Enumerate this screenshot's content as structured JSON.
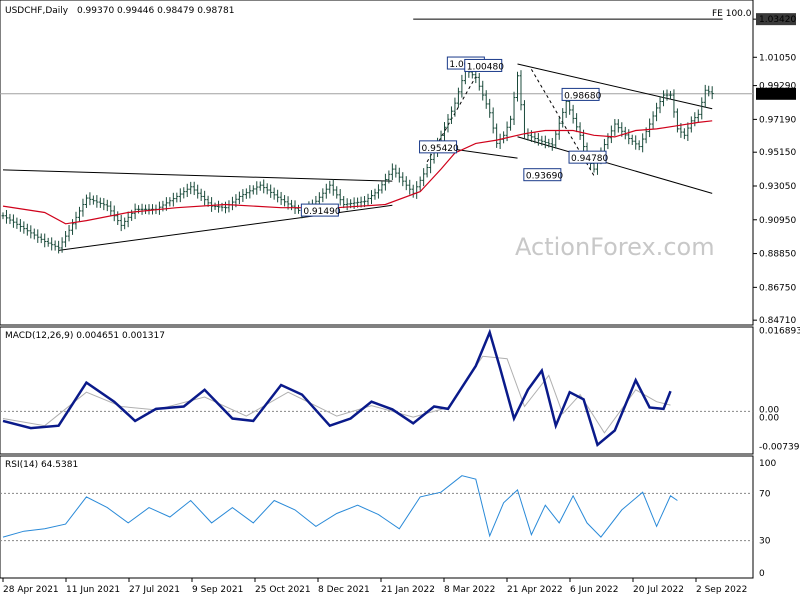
{
  "header": {
    "symbol": "USDCHF,Daily",
    "ohlc": "0.99370 0.99446 0.98479 0.98781"
  },
  "watermark": "ActionForex.com",
  "chart_data": [
    {
      "type": "candlestick",
      "title": "USDCHF,Daily",
      "ylim": [
        0.8441,
        1.0461
      ],
      "y_ticks": [
        "1.03420",
        "1.01050",
        "0.99290",
        "0.97190",
        "0.95150",
        "0.93050",
        "0.90950",
        "0.88850",
        "0.86750",
        "0.84710"
      ],
      "y_tick_values": [
        1.0342,
        1.0105,
        0.9929,
        0.9719,
        0.9515,
        0.9305,
        0.9095,
        0.8885,
        0.8675,
        0.8471
      ],
      "current_price_label": "0.98781",
      "current_price": 0.98781,
      "fe_label": "FE 100.0",
      "fe_level": 1.0342,
      "price_labels": [
        {
          "text": "1.00630",
          "value": 1.0063,
          "x_index": 133
        },
        {
          "text": "1.00480",
          "value": 1.0048,
          "x_index": 138
        },
        {
          "text": "0.98680",
          "value": 0.9868,
          "x_index": 166
        },
        {
          "text": "0.95420",
          "value": 0.9542,
          "x_index": 125
        },
        {
          "text": "0.94780",
          "value": 0.9478,
          "x_index": 168
        },
        {
          "text": "0.93690",
          "value": 0.9369,
          "x_index": 155
        },
        {
          "text": "0.91490",
          "value": 0.9149,
          "x_index": 91
        }
      ],
      "close_series": [
        {
          "x": 0,
          "y": 0.912
        },
        {
          "x": 6,
          "y": 0.904
        },
        {
          "x": 12,
          "y": 0.896
        },
        {
          "x": 16,
          "y": 0.892
        },
        {
          "x": 19,
          "y": 0.903
        },
        {
          "x": 24,
          "y": 0.923
        },
        {
          "x": 30,
          "y": 0.918
        },
        {
          "x": 34,
          "y": 0.906
        },
        {
          "x": 38,
          "y": 0.916
        },
        {
          "x": 44,
          "y": 0.916
        },
        {
          "x": 50,
          "y": 0.924
        },
        {
          "x": 54,
          "y": 0.93
        },
        {
          "x": 60,
          "y": 0.918
        },
        {
          "x": 64,
          "y": 0.917
        },
        {
          "x": 68,
          "y": 0.924
        },
        {
          "x": 74,
          "y": 0.931
        },
        {
          "x": 80,
          "y": 0.922
        },
        {
          "x": 86,
          "y": 0.914
        },
        {
          "x": 90,
          "y": 0.921
        },
        {
          "x": 94,
          "y": 0.931
        },
        {
          "x": 98,
          "y": 0.919
        },
        {
          "x": 104,
          "y": 0.921
        },
        {
          "x": 108,
          "y": 0.928
        },
        {
          "x": 112,
          "y": 0.941
        },
        {
          "x": 118,
          "y": 0.926
        },
        {
          "x": 122,
          "y": 0.942
        },
        {
          "x": 126,
          "y": 0.962
        },
        {
          "x": 130,
          "y": 0.982
        },
        {
          "x": 133,
          "y": 1.003
        },
        {
          "x": 136,
          "y": 0.998
        },
        {
          "x": 140,
          "y": 0.976
        },
        {
          "x": 142,
          "y": 0.957
        },
        {
          "x": 144,
          "y": 0.962
        },
        {
          "x": 146,
          "y": 0.972
        },
        {
          "x": 148,
          "y": 0.999
        },
        {
          "x": 150,
          "y": 0.963
        },
        {
          "x": 154,
          "y": 0.959
        },
        {
          "x": 158,
          "y": 0.956
        },
        {
          "x": 162,
          "y": 0.983
        },
        {
          "x": 166,
          "y": 0.962
        },
        {
          "x": 168,
          "y": 0.948
        },
        {
          "x": 170,
          "y": 0.941
        },
        {
          "x": 172,
          "y": 0.952
        },
        {
          "x": 176,
          "y": 0.969
        },
        {
          "x": 180,
          "y": 0.96
        },
        {
          "x": 183,
          "y": 0.955
        },
        {
          "x": 186,
          "y": 0.969
        },
        {
          "x": 188,
          "y": 0.979
        },
        {
          "x": 190,
          "y": 0.987
        },
        {
          "x": 192,
          "y": 0.987
        },
        {
          "x": 194,
          "y": 0.966
        },
        {
          "x": 196,
          "y": 0.962
        },
        {
          "x": 198,
          "y": 0.971
        },
        {
          "x": 200,
          "y": 0.975
        },
        {
          "x": 202,
          "y": 0.99
        },
        {
          "x": 204,
          "y": 0.988
        }
      ],
      "moving_average": [
        {
          "x": 0,
          "y": 0.918
        },
        {
          "x": 12,
          "y": 0.914
        },
        {
          "x": 18,
          "y": 0.907
        },
        {
          "x": 24,
          "y": 0.909
        },
        {
          "x": 36,
          "y": 0.914
        },
        {
          "x": 50,
          "y": 0.917
        },
        {
          "x": 64,
          "y": 0.919
        },
        {
          "x": 80,
          "y": 0.917
        },
        {
          "x": 96,
          "y": 0.917
        },
        {
          "x": 110,
          "y": 0.919
        },
        {
          "x": 120,
          "y": 0.927
        },
        {
          "x": 126,
          "y": 0.941
        },
        {
          "x": 130,
          "y": 0.951
        },
        {
          "x": 136,
          "y": 0.957
        },
        {
          "x": 142,
          "y": 0.959
        },
        {
          "x": 150,
          "y": 0.963
        },
        {
          "x": 156,
          "y": 0.965
        },
        {
          "x": 164,
          "y": 0.965
        },
        {
          "x": 170,
          "y": 0.962
        },
        {
          "x": 176,
          "y": 0.961
        },
        {
          "x": 182,
          "y": 0.965
        },
        {
          "x": 188,
          "y": 0.966
        },
        {
          "x": 194,
          "y": 0.968
        },
        {
          "x": 200,
          "y": 0.97
        },
        {
          "x": 204,
          "y": 0.971
        }
      ],
      "trendlines": [
        {
          "x1": 0,
          "y1": 0.9405,
          "x2": 112,
          "y2": 0.9335
        },
        {
          "x1": 16,
          "y1": 0.8905,
          "x2": 112,
          "y2": 0.9185
        },
        {
          "x1": 126,
          "y1": 0.9545,
          "x2": 148,
          "y2": 0.9478
        },
        {
          "x1": 148,
          "y1": 1.0063,
          "x2": 204,
          "y2": 0.9785
        },
        {
          "x1": 148,
          "y1": 0.9611,
          "x2": 204,
          "y2": 0.9259
        },
        {
          "x1": 122,
          "y1": 0.9455,
          "x2": 136,
          "y2": 0.9985
        },
        {
          "x1": 152,
          "y1": 1.003,
          "x2": 170,
          "y2": 0.9369
        },
        {
          "x1": 118,
          "y1": 1.0342,
          "x2": 207,
          "y2": 1.0342
        }
      ],
      "x_tick_labels": [
        "28 Apr 2021",
        "11 Jun 2021",
        "27 Jul 2021",
        "9 Sep 2021",
        "25 Oct 2021",
        "8 Dec 2021",
        "21 Jan 2022",
        "8 Mar 2022",
        "21 Apr 2022",
        "6 Jun 2022",
        "20 Jul 2022",
        "2 Sep 2022"
      ],
      "x_tick_index": [
        0,
        31,
        50,
        68,
        86,
        104,
        123,
        140,
        158,
        176,
        194,
        212
      ]
    },
    {
      "type": "line",
      "title": "MACD(12,26,9) 0.004651 0.001317",
      "ylim": [
        -0.0085,
        0.0172
      ],
      "y_ticks": [
        "0.016893",
        "0.00",
        "0.00",
        "-0.007393"
      ],
      "y_tick_values": [
        0.016893,
        0.0,
        0.0,
        -0.007393
      ],
      "series": [
        {
          "name": "MACD",
          "values": [
            {
              "x": 0,
              "y": -0.002
            },
            {
              "x": 8,
              "y": -0.0035
            },
            {
              "x": 16,
              "y": -0.003
            },
            {
              "x": 24,
              "y": 0.006
            },
            {
              "x": 32,
              "y": 0.002
            },
            {
              "x": 38,
              "y": -0.002
            },
            {
              "x": 44,
              "y": 0.0005
            },
            {
              "x": 52,
              "y": 0.001
            },
            {
              "x": 58,
              "y": 0.0045
            },
            {
              "x": 66,
              "y": -0.0015
            },
            {
              "x": 72,
              "y": -0.002
            },
            {
              "x": 80,
              "y": 0.0055
            },
            {
              "x": 86,
              "y": 0.0035
            },
            {
              "x": 94,
              "y": -0.003
            },
            {
              "x": 100,
              "y": -0.0015
            },
            {
              "x": 106,
              "y": 0.002
            },
            {
              "x": 112,
              "y": 0.0004
            },
            {
              "x": 118,
              "y": -0.0025
            },
            {
              "x": 124,
              "y": 0.001
            },
            {
              "x": 128,
              "y": 0.0005
            },
            {
              "x": 136,
              "y": 0.0095
            },
            {
              "x": 140,
              "y": 0.0165
            },
            {
              "x": 143,
              "y": 0.009
            },
            {
              "x": 147,
              "y": -0.0015
            },
            {
              "x": 151,
              "y": 0.0045
            },
            {
              "x": 155,
              "y": 0.0085
            },
            {
              "x": 159,
              "y": -0.003
            },
            {
              "x": 163,
              "y": 0.004
            },
            {
              "x": 167,
              "y": 0.0025
            },
            {
              "x": 171,
              "y": -0.007
            },
            {
              "x": 176,
              "y": -0.004
            },
            {
              "x": 182,
              "y": 0.0065
            },
            {
              "x": 186,
              "y": 0.0008
            },
            {
              "x": 190,
              "y": 0.0005
            },
            {
              "x": 192,
              "y": 0.0042
            }
          ]
        },
        {
          "name": "Signal",
          "values": [
            {
              "x": 0,
              "y": -0.0015
            },
            {
              "x": 12,
              "y": -0.003
            },
            {
              "x": 24,
              "y": 0.004
            },
            {
              "x": 34,
              "y": 0.001
            },
            {
              "x": 44,
              "y": 0.0003
            },
            {
              "x": 58,
              "y": 0.003
            },
            {
              "x": 70,
              "y": -0.001
            },
            {
              "x": 82,
              "y": 0.004
            },
            {
              "x": 96,
              "y": -0.001
            },
            {
              "x": 106,
              "y": 0.0012
            },
            {
              "x": 118,
              "y": -0.0012
            },
            {
              "x": 128,
              "y": 0.0008
            },
            {
              "x": 138,
              "y": 0.0115
            },
            {
              "x": 145,
              "y": 0.011
            },
            {
              "x": 150,
              "y": 0.001
            },
            {
              "x": 157,
              "y": 0.0075
            },
            {
              "x": 161,
              "y": -0.0005
            },
            {
              "x": 166,
              "y": 0.0035
            },
            {
              "x": 173,
              "y": -0.0045
            },
            {
              "x": 182,
              "y": 0.0045
            },
            {
              "x": 188,
              "y": 0.002
            },
            {
              "x": 192,
              "y": 0.0013
            }
          ]
        }
      ]
    },
    {
      "type": "line",
      "title": "RSI(14) 64.5381",
      "ylim": [
        0,
        100
      ],
      "y_ticks": [
        "100",
        "70",
        "30",
        "0"
      ],
      "y_tick_values": [
        100,
        70,
        30,
        0
      ],
      "levels": [
        70,
        30
      ],
      "series": [
        {
          "name": "RSI(14)",
          "values": [
            {
              "x": 0,
              "y": 33
            },
            {
              "x": 6,
              "y": 38
            },
            {
              "x": 12,
              "y": 40
            },
            {
              "x": 18,
              "y": 44
            },
            {
              "x": 24,
              "y": 67
            },
            {
              "x": 30,
              "y": 58
            },
            {
              "x": 36,
              "y": 45
            },
            {
              "x": 42,
              "y": 58
            },
            {
              "x": 48,
              "y": 50
            },
            {
              "x": 54,
              "y": 64
            },
            {
              "x": 60,
              "y": 45
            },
            {
              "x": 66,
              "y": 58
            },
            {
              "x": 72,
              "y": 45
            },
            {
              "x": 78,
              "y": 64
            },
            {
              "x": 84,
              "y": 56
            },
            {
              "x": 90,
              "y": 42
            },
            {
              "x": 96,
              "y": 53
            },
            {
              "x": 102,
              "y": 60
            },
            {
              "x": 108,
              "y": 52
            },
            {
              "x": 114,
              "y": 40
            },
            {
              "x": 120,
              "y": 67
            },
            {
              "x": 126,
              "y": 71
            },
            {
              "x": 132,
              "y": 85
            },
            {
              "x": 136,
              "y": 82
            },
            {
              "x": 140,
              "y": 34
            },
            {
              "x": 144,
              "y": 62
            },
            {
              "x": 148,
              "y": 73
            },
            {
              "x": 152,
              "y": 35
            },
            {
              "x": 156,
              "y": 60
            },
            {
              "x": 160,
              "y": 45
            },
            {
              "x": 164,
              "y": 68
            },
            {
              "x": 168,
              "y": 45
            },
            {
              "x": 172,
              "y": 33
            },
            {
              "x": 178,
              "y": 56
            },
            {
              "x": 184,
              "y": 71
            },
            {
              "x": 188,
              "y": 42
            },
            {
              "x": 192,
              "y": 68
            },
            {
              "x": 194,
              "y": 64
            }
          ]
        }
      ]
    }
  ]
}
